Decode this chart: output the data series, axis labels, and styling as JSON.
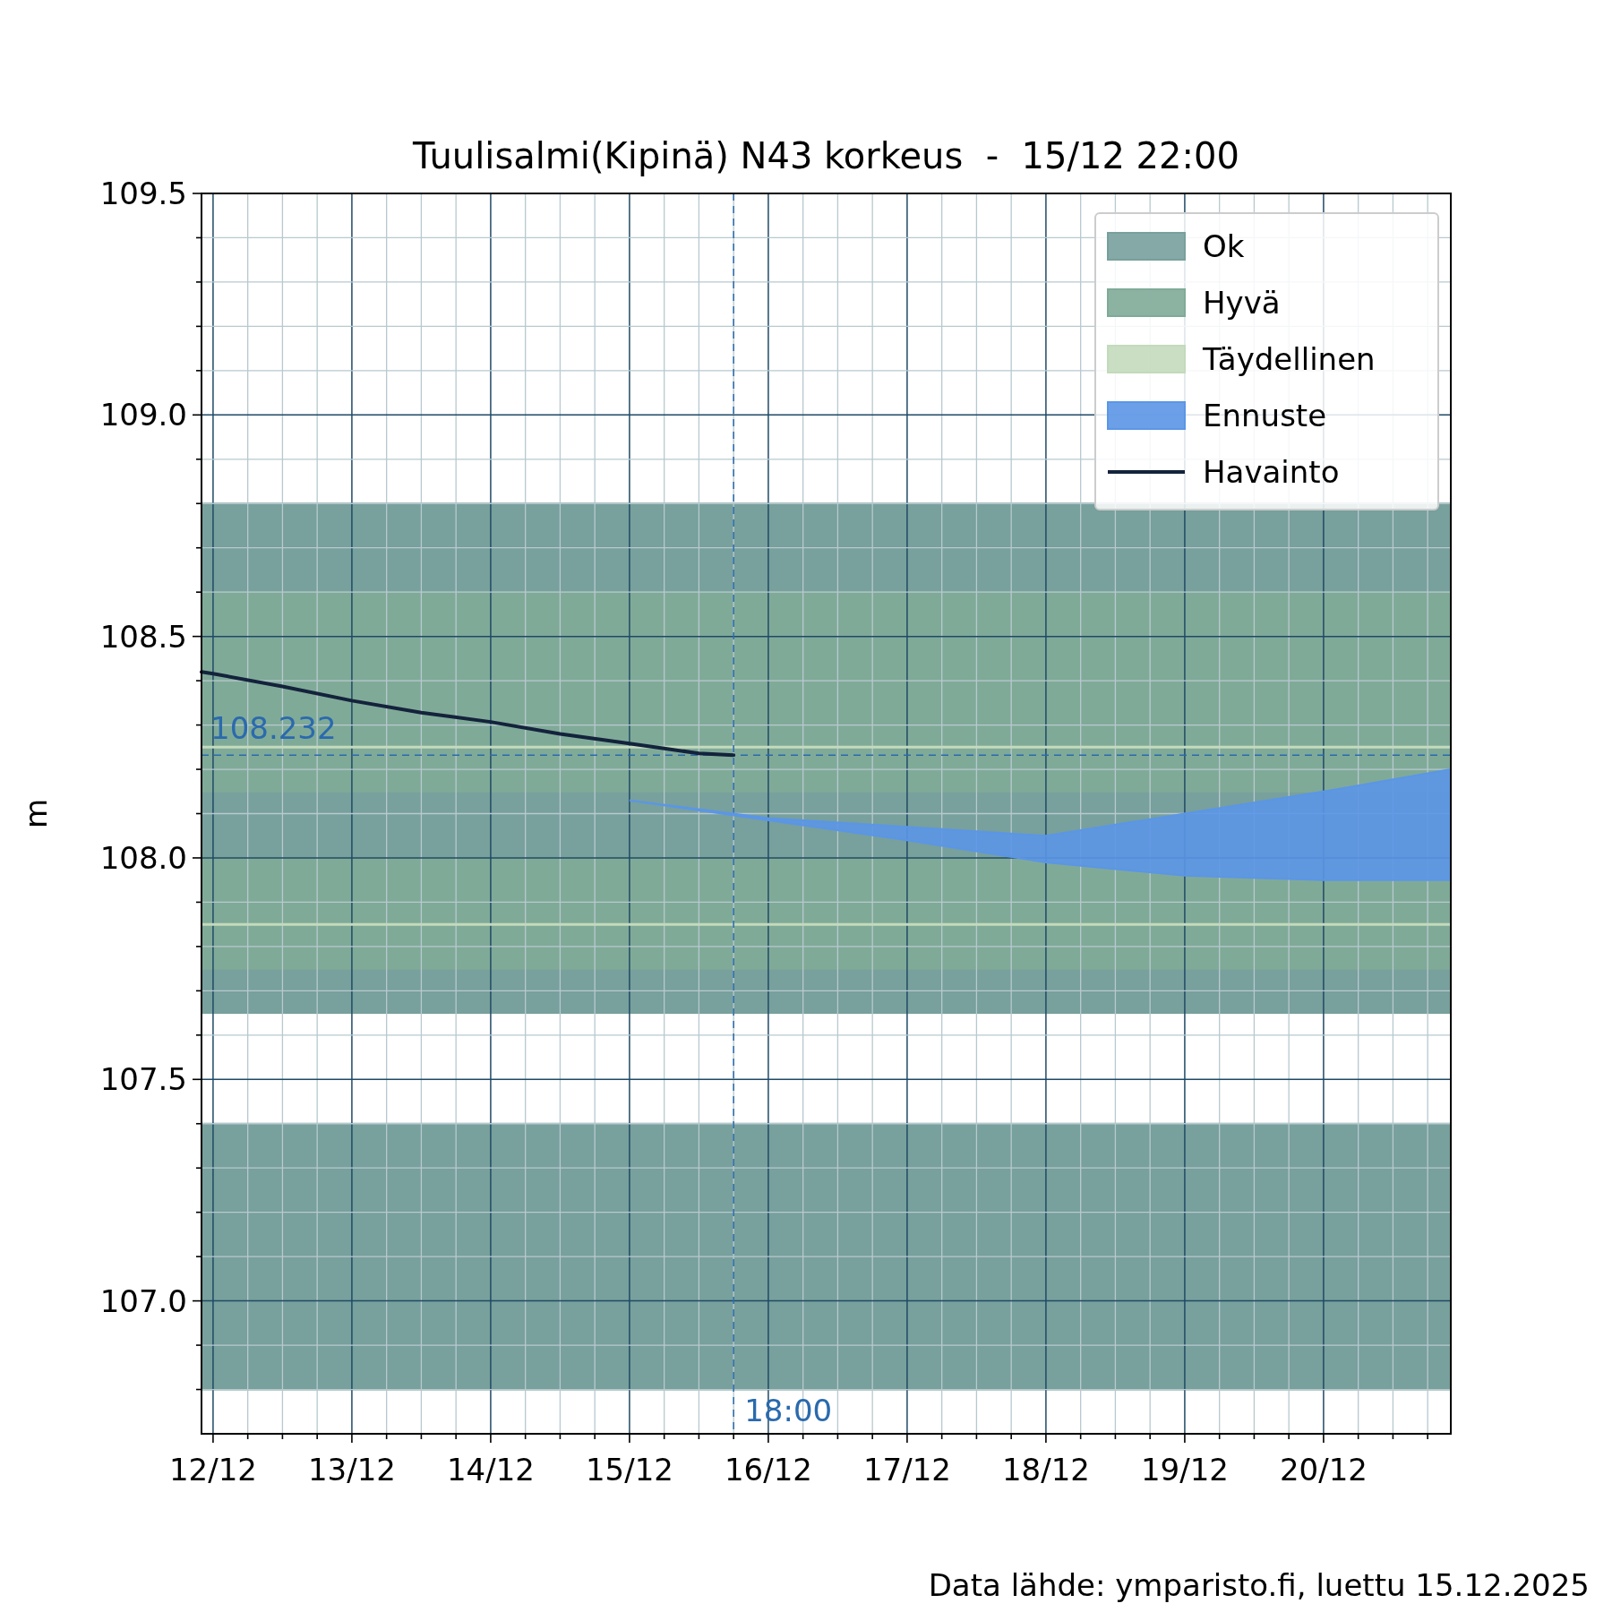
{
  "chart_data": {
    "type": "line",
    "title": "Tuulisalmi(Kipinä) N43 korkeus  -  15/12 22:00",
    "ylabel": "m",
    "annotations": [
      "Data lähde: ymparisto.fi, luettu 15.12.2025"
    ],
    "xlim": [
      "2025-12-11T22:00",
      "2025-12-20T22:00"
    ],
    "ylim": [
      106.7,
      109.5
    ],
    "xticks": [
      {
        "value": "2025-12-12T00:00",
        "label": "12/12"
      },
      {
        "value": "2025-12-12T06:00",
        "label": null
      },
      {
        "value": "2025-12-12T12:00",
        "label": null
      },
      {
        "value": "2025-12-12T18:00",
        "label": null
      },
      {
        "value": "2025-12-13T00:00",
        "label": "13/12"
      },
      {
        "value": "2025-12-13T06:00",
        "label": null
      },
      {
        "value": "2025-12-13T12:00",
        "label": null
      },
      {
        "value": "2025-12-13T18:00",
        "label": null
      },
      {
        "value": "2025-12-14T00:00",
        "label": "14/12"
      },
      {
        "value": "2025-12-14T06:00",
        "label": null
      },
      {
        "value": "2025-12-14T12:00",
        "label": null
      },
      {
        "value": "2025-12-14T18:00",
        "label": null
      },
      {
        "value": "2025-12-15T00:00",
        "label": "15/12"
      },
      {
        "value": "2025-12-15T06:00",
        "label": null
      },
      {
        "value": "2025-12-15T12:00",
        "label": null
      },
      {
        "value": "2025-12-15T18:00",
        "label": null
      },
      {
        "value": "2025-12-16T00:00",
        "label": "16/12"
      },
      {
        "value": "2025-12-16T06:00",
        "label": null
      },
      {
        "value": "2025-12-16T12:00",
        "label": null
      },
      {
        "value": "2025-12-16T18:00",
        "label": null
      },
      {
        "value": "2025-12-17T00:00",
        "label": "17/12"
      },
      {
        "value": "2025-12-17T06:00",
        "label": null
      },
      {
        "value": "2025-12-17T12:00",
        "label": null
      },
      {
        "value": "2025-12-17T18:00",
        "label": null
      },
      {
        "value": "2025-12-18T00:00",
        "label": "18/12"
      },
      {
        "value": "2025-12-18T06:00",
        "label": null
      },
      {
        "value": "2025-12-18T12:00",
        "label": null
      },
      {
        "value": "2025-12-18T18:00",
        "label": null
      },
      {
        "value": "2025-12-19T00:00",
        "label": "19/12"
      },
      {
        "value": "2025-12-19T06:00",
        "label": null
      },
      {
        "value": "2025-12-19T12:00",
        "label": null
      },
      {
        "value": "2025-12-19T18:00",
        "label": null
      },
      {
        "value": "2025-12-20T00:00",
        "label": "20/12"
      },
      {
        "value": "2025-12-20T06:00",
        "label": null
      },
      {
        "value": "2025-12-20T12:00",
        "label": null
      },
      {
        "value": "2025-12-20T18:00",
        "label": null
      }
    ],
    "yticks": [
      {
        "value": 106.8,
        "label": null
      },
      {
        "value": 106.9,
        "label": null
      },
      {
        "value": 107.0,
        "label": "107.0"
      },
      {
        "value": 107.1,
        "label": null
      },
      {
        "value": 107.2,
        "label": null
      },
      {
        "value": 107.3,
        "label": null
      },
      {
        "value": 107.4,
        "label": null
      },
      {
        "value": 107.5,
        "label": "107.5"
      },
      {
        "value": 107.6,
        "label": null
      },
      {
        "value": 107.7,
        "label": null
      },
      {
        "value": 107.8,
        "label": null
      },
      {
        "value": 107.9,
        "label": null
      },
      {
        "value": 108.0,
        "label": "108.0"
      },
      {
        "value": 108.1,
        "label": null
      },
      {
        "value": 108.2,
        "label": null
      },
      {
        "value": 108.3,
        "label": null
      },
      {
        "value": 108.4,
        "label": null
      },
      {
        "value": 108.5,
        "label": "108.5"
      },
      {
        "value": 108.6,
        "label": null
      },
      {
        "value": 108.7,
        "label": null
      },
      {
        "value": 108.8,
        "label": null
      },
      {
        "value": 108.9,
        "label": null
      },
      {
        "value": 109.0,
        "label": "109.0"
      },
      {
        "value": 109.1,
        "label": null
      },
      {
        "value": 109.2,
        "label": null
      },
      {
        "value": 109.3,
        "label": null
      },
      {
        "value": 109.4,
        "label": null
      },
      {
        "value": 109.5,
        "label": "109.5"
      }
    ],
    "grid": true,
    "legend": "top right",
    "bands": [
      {
        "axis": "y",
        "from": 107.65,
        "to": 108.8,
        "label": "Ok",
        "color": "#78a09c"
      },
      {
        "axis": "y",
        "from": 106.8,
        "to": 107.4,
        "color": "#78a09c"
      },
      {
        "axis": "y",
        "from": 108.15,
        "to": 108.6,
        "label": "Hyvä",
        "color": "#80aa98"
      },
      {
        "axis": "y",
        "from": 107.75,
        "to": 108.0,
        "color": "#80aa98"
      }
    ],
    "ref_lines": [
      {
        "axis": "y",
        "value": 108.25,
        "label": "Täydellinen",
        "color": "#c3dabc",
        "line_style": "solid"
      },
      {
        "axis": "y",
        "value": 107.85,
        "color": "#c3dabc",
        "line_style": "solid"
      },
      {
        "axis": "y",
        "value": 108.232,
        "label": "108.232",
        "color": "#2a6aad",
        "line_style": "dashed"
      },
      {
        "axis": "x",
        "value": "2025-12-15T18:00",
        "label": "18:00",
        "color": "#2a6aad",
        "line_style": "dashed"
      }
    ],
    "series": [
      {
        "name": "Ennuste",
        "type": "area",
        "color": "#5b96e6",
        "x": [
          "2025-12-15T00:00",
          "2025-12-16T00:00",
          "2025-12-17T00:00",
          "2025-12-18T00:00",
          "2025-12-19T00:00",
          "2025-12-20T00:00",
          "2025-12-20T22:00"
        ],
        "values": [
          null,
          null,
          null,
          null,
          null,
          null,
          null
        ],
        "upper": [
          108.13,
          108.09,
          108.07,
          108.05,
          108.1,
          108.15,
          108.2
        ],
        "lower": [
          108.13,
          108.085,
          108.04,
          107.99,
          107.96,
          107.95,
          107.95
        ]
      },
      {
        "name": "Havainto",
        "color": "#14233c",
        "line_style": "solid",
        "x": [
          "2025-12-11T22:00",
          "2025-12-12T00:00",
          "2025-12-12T12:00",
          "2025-12-13T00:00",
          "2025-12-13T12:00",
          "2025-12-14T00:00",
          "2025-12-14T12:00",
          "2025-12-15T00:00",
          "2025-12-15T06:00",
          "2025-12-15T12:00",
          "2025-12-15T18:00"
        ],
        "values": [
          108.42,
          108.416,
          108.387,
          108.355,
          108.328,
          108.307,
          108.28,
          108.258,
          108.247,
          108.236,
          108.232
        ]
      }
    ]
  }
}
